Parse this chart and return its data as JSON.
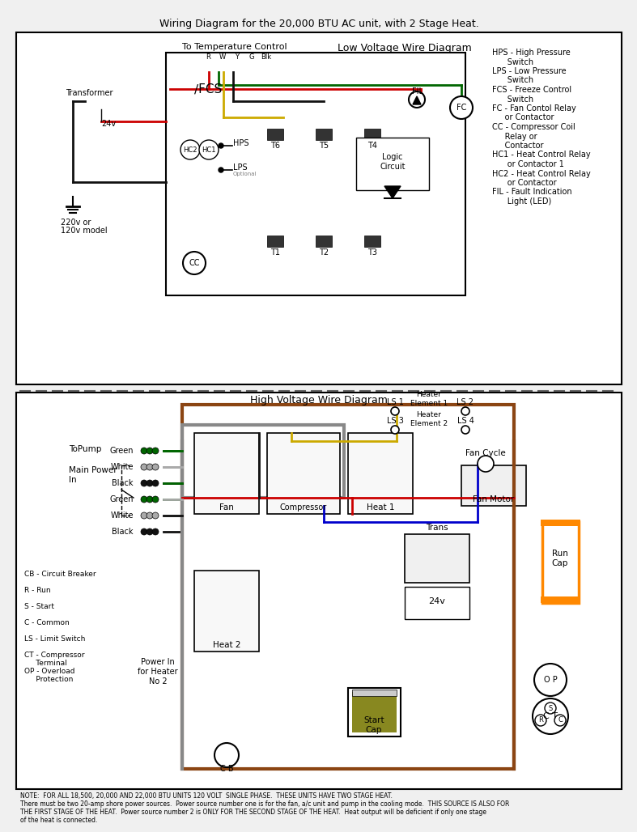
{
  "title": "Wiring Diagram for the 20,000 BTU AC unit, with 2 Stage Heat.",
  "low_voltage_title": "Low Voltage Wire Diagram",
  "high_voltage_title": "High Voltage Wire Diagram",
  "top_label": "To Temperature Control",
  "terminal_labels": [
    "R",
    "W",
    "Y",
    "G",
    "Blk"
  ],
  "transformer_label": "Transformer",
  "voltage_label": "220v or\n120v model",
  "v24_label": "24v",
  "fcs_label": "∕FCS",
  "fil_label": "FIL",
  "fc_label": "FC",
  "hps_label": "HPS",
  "lps_label": "LPS",
  "lps_optional": "Optional",
  "cc_label": "CC",
  "hc1_label": "HC1",
  "hc2_label": "HC2",
  "t_labels": [
    "T6",
    "T5",
    "T4",
    "T1",
    "T2",
    "T3"
  ],
  "logic_label": "Logic\nCircuit",
  "right_labels": [
    "HPS - High Pressure\n      Switch",
    "LPS - Low Pressure\n      Switch",
    "FCS - Freeze Control\n      Switch",
    "FC - Fan Contol Relay\n     or Contactor",
    "CC - Compressor Coil\n     Relay or\n     Contactor",
    "HC1 - Heat Control Relay\n      or Contactor 1",
    "HC2 - Heat Control Relay\n      or Contactor",
    "FIL - Fault Indication\n      Light (LED)"
  ],
  "ls_labels": [
    "LS 1",
    "LS 2",
    "LS 3",
    "LS 4"
  ],
  "heater_labels": [
    "Heater\nElement 1",
    "Heater\nElement 2"
  ],
  "pump_label": "ToPump",
  "main_power_label": "Main Power\nIn",
  "wire_colors_left": [
    "Green",
    "White",
    "Black",
    "Green",
    "White",
    "Black"
  ],
  "fan_label": "Fan",
  "compressor_label": "Compressor",
  "heat1_label": "Heat 1",
  "heat2_label": "Heat 2",
  "trans_label": "Trans",
  "v24_hv_label": "24v",
  "fan_cycle_label": "Fan Cycle",
  "fan_motor_label": "Fan Motor",
  "run_cap_label": "Run\nCap",
  "start_cap_label": "Start\nCap",
  "cb_label": "C B",
  "power_in_label": "Power In\nfor Heater\nNo 2",
  "op_label": "O P",
  "ct_label": "C T",
  "legend_labels": [
    "CB - Circuit Breaker",
    "R - Run",
    "S - Start",
    "C - Common",
    "LS - Limit Switch",
    "CT - Compressor\n     Terminal",
    "OP - Overload\n     Protection"
  ],
  "note_text": "NOTE:  FOR ALL 18,500, 20,000 AND 22,000 BTU UNITS 120 VOLT  SINGLE PHASE.  THESE UNITS HAVE TWO STAGE HEAT.\nThere must be two 20-amp shore power sources.  Power source number one is for the fan, a/c unit and pump in the cooling mode.  THIS SOURCE IS ALSO FOR\nTHE FIRST STAGE OF THE HEAT.  Power source number 2 is ONLY FOR THE SECOND STAGE OF THE HEAT.  Heat output will be deficient if only one stage\nof the heat is connected.",
  "bg_color": "#f0f0f0",
  "wire_red": "#cc0000",
  "wire_green": "#006600",
  "wire_yellow": "#ccaa00",
  "wire_black": "#111111",
  "wire_blue": "#0000cc",
  "wire_brown": "#8B4513",
  "wire_gray": "#888888",
  "wire_orange": "#ff8800",
  "box_fill": "#ffffff",
  "dashed_line_color": "#666666"
}
